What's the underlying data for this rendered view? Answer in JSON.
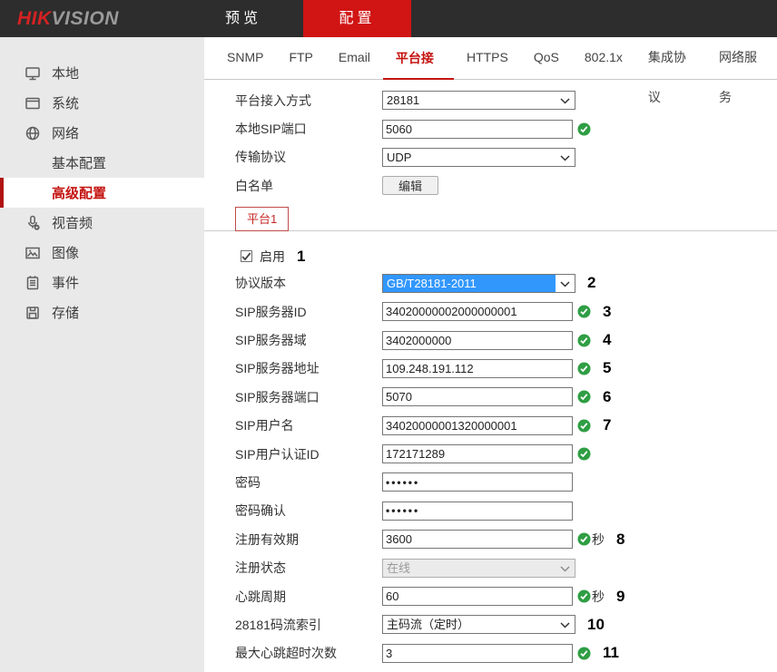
{
  "colors": {
    "accent_red": "#c41411",
    "topbar_tab_red": "#d11414",
    "valid_green": "#2f9e44",
    "selection_blue": "#3297fd",
    "topbar_bg": "#2d2d2d",
    "sidebar_bg": "#e9e9e9"
  },
  "topbar": {
    "logo_hik": "HIK",
    "logo_vision": "VISION",
    "nav": [
      {
        "name": "preview",
        "label": "预览",
        "active": false
      },
      {
        "name": "configuration",
        "label": "配置",
        "active": true
      }
    ]
  },
  "sidebar": {
    "items": [
      {
        "name": "local",
        "label": "本地",
        "icon": "monitor-icon",
        "sub": false,
        "active": false
      },
      {
        "name": "system",
        "label": "系统",
        "icon": "window-icon",
        "sub": false,
        "active": false
      },
      {
        "name": "network",
        "label": "网络",
        "icon": "globe-icon",
        "sub": false,
        "active": false
      },
      {
        "name": "basic-config",
        "label": "基本配置",
        "icon": "",
        "sub": true,
        "active": false
      },
      {
        "name": "advanced-config",
        "label": "高级配置",
        "icon": "",
        "sub": true,
        "active": true
      },
      {
        "name": "audio-video",
        "label": "视音频",
        "icon": "microphone-icon",
        "sub": false,
        "active": false
      },
      {
        "name": "image",
        "label": "图像",
        "icon": "picture-icon",
        "sub": false,
        "active": false
      },
      {
        "name": "event",
        "label": "事件",
        "icon": "notepad-icon",
        "sub": false,
        "active": false
      },
      {
        "name": "storage",
        "label": "存储",
        "icon": "floppy-icon",
        "sub": false,
        "active": false
      }
    ]
  },
  "tabs": [
    {
      "name": "snmp",
      "label": "SNMP",
      "active": false
    },
    {
      "name": "ftp",
      "label": "FTP",
      "active": false
    },
    {
      "name": "email",
      "label": "Email",
      "active": false
    },
    {
      "name": "platform-access",
      "label": "平台接入",
      "active": true
    },
    {
      "name": "https",
      "label": "HTTPS",
      "active": false
    },
    {
      "name": "qos",
      "label": "QoS",
      "active": false
    },
    {
      "name": "8021x",
      "label": "802.1x",
      "active": false
    },
    {
      "name": "integration-protocol",
      "label": "集成协议",
      "active": false
    },
    {
      "name": "network-service",
      "label": "网络服务",
      "active": false
    }
  ],
  "form": {
    "top_fields": [
      {
        "name": "platform-access-mode",
        "label": "平台接入方式",
        "control": "select",
        "value": "28181"
      },
      {
        "name": "local-sip-port",
        "label": "本地SIP端口",
        "control": "input",
        "value": "5060",
        "valid": true
      },
      {
        "name": "transport-protocol",
        "label": "传输协议",
        "control": "select",
        "value": "UDP"
      },
      {
        "name": "whitelist",
        "label": "白名单",
        "control": "button",
        "button_label": "编辑"
      }
    ],
    "platform_tab_label": "平台1",
    "enable_row": {
      "label": "启用",
      "checked": true,
      "annotation": "1"
    },
    "platform_fields": [
      {
        "name": "protocol-version",
        "label": "协议版本",
        "control": "select",
        "value": "GB/T28181-2011",
        "highlighted": true,
        "annotation": "2"
      },
      {
        "name": "sip-server-id",
        "label": "SIP服务器ID",
        "control": "input",
        "value": "34020000002000000001",
        "valid": true,
        "annotation": "3"
      },
      {
        "name": "sip-server-domain",
        "label": "SIP服务器域",
        "control": "input",
        "value": "3402000000",
        "valid": true,
        "annotation": "4"
      },
      {
        "name": "sip-server-address",
        "label": "SIP服务器地址",
        "control": "input",
        "value": "109.248.191.112",
        "valid": true,
        "annotation": "5"
      },
      {
        "name": "sip-server-port",
        "label": "SIP服务器端口",
        "control": "input",
        "value": "5070",
        "valid": true,
        "annotation": "6"
      },
      {
        "name": "sip-username",
        "label": "SIP用户名",
        "control": "input",
        "value": "34020000001320000001",
        "valid": true,
        "annotation": "7"
      },
      {
        "name": "sip-user-auth-id",
        "label": "SIP用户认证ID",
        "control": "input",
        "value": "172171289",
        "valid": true
      },
      {
        "name": "password",
        "label": "密码",
        "control": "password",
        "value": "••••••"
      },
      {
        "name": "password-confirm",
        "label": "密码确认",
        "control": "password",
        "value": "••••••"
      },
      {
        "name": "registration-validity",
        "label": "注册有效期",
        "control": "input",
        "value": "3600",
        "valid": true,
        "suffix": "秒",
        "annotation": "8"
      },
      {
        "name": "registration-status",
        "label": "注册状态",
        "control": "select",
        "value": "在线",
        "disabled": true
      },
      {
        "name": "heartbeat-interval",
        "label": "心跳周期",
        "control": "input",
        "value": "60",
        "valid": true,
        "suffix": "秒",
        "annotation": "9"
      },
      {
        "name": "stream-index-28181",
        "label": "28181码流索引",
        "control": "select",
        "value": "主码流（定时）",
        "annotation": "10"
      },
      {
        "name": "max-heartbeat-timeouts",
        "label": "最大心跳超时次数",
        "control": "input",
        "value": "3",
        "valid": true,
        "annotation": "11"
      }
    ]
  }
}
